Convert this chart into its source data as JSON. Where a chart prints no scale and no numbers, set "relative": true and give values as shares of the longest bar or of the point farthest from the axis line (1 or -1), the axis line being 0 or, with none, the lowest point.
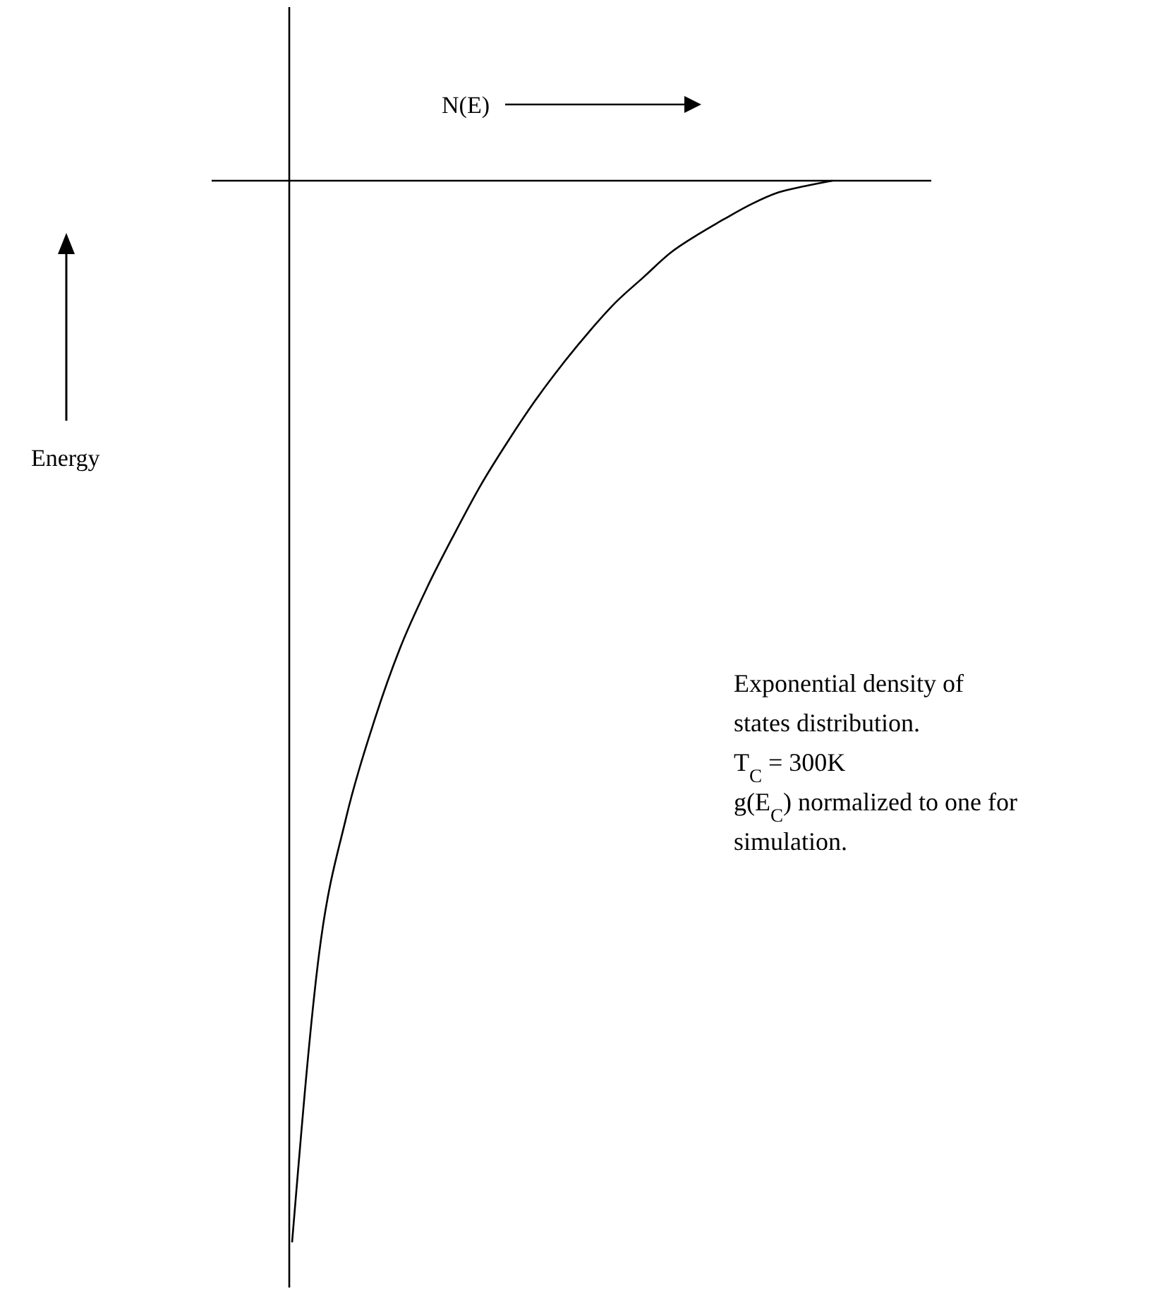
{
  "chart_data": {
    "type": "line",
    "relative": true,
    "xlabel": "N(E)",
    "color": "#000000",
    "categories": [
      null,
      null,
      null,
      null,
      null,
      null,
      null,
      null,
      null,
      null,
      null,
      null,
      null,
      null,
      null,
      null,
      null,
      null,
      null,
      null,
      null
    ],
    "values": [
      -1,
      -0.728,
      -0.6,
      -0.512,
      -0.44,
      -0.383,
      -0.333,
      -0.286,
      -0.245,
      -0.207,
      -0.173,
      -0.142,
      -0.114,
      -0.091,
      -0.068,
      -0.051,
      -0.036,
      -0.022,
      -0.011,
      -0.005,
      0
    ],
    "annotations": [
      "Energy",
      "Exponential density of states distribution.",
      "T$_{C}$ = 300K",
      "g(E$_{C}$) normalized to one for simulation."
    ]
  }
}
